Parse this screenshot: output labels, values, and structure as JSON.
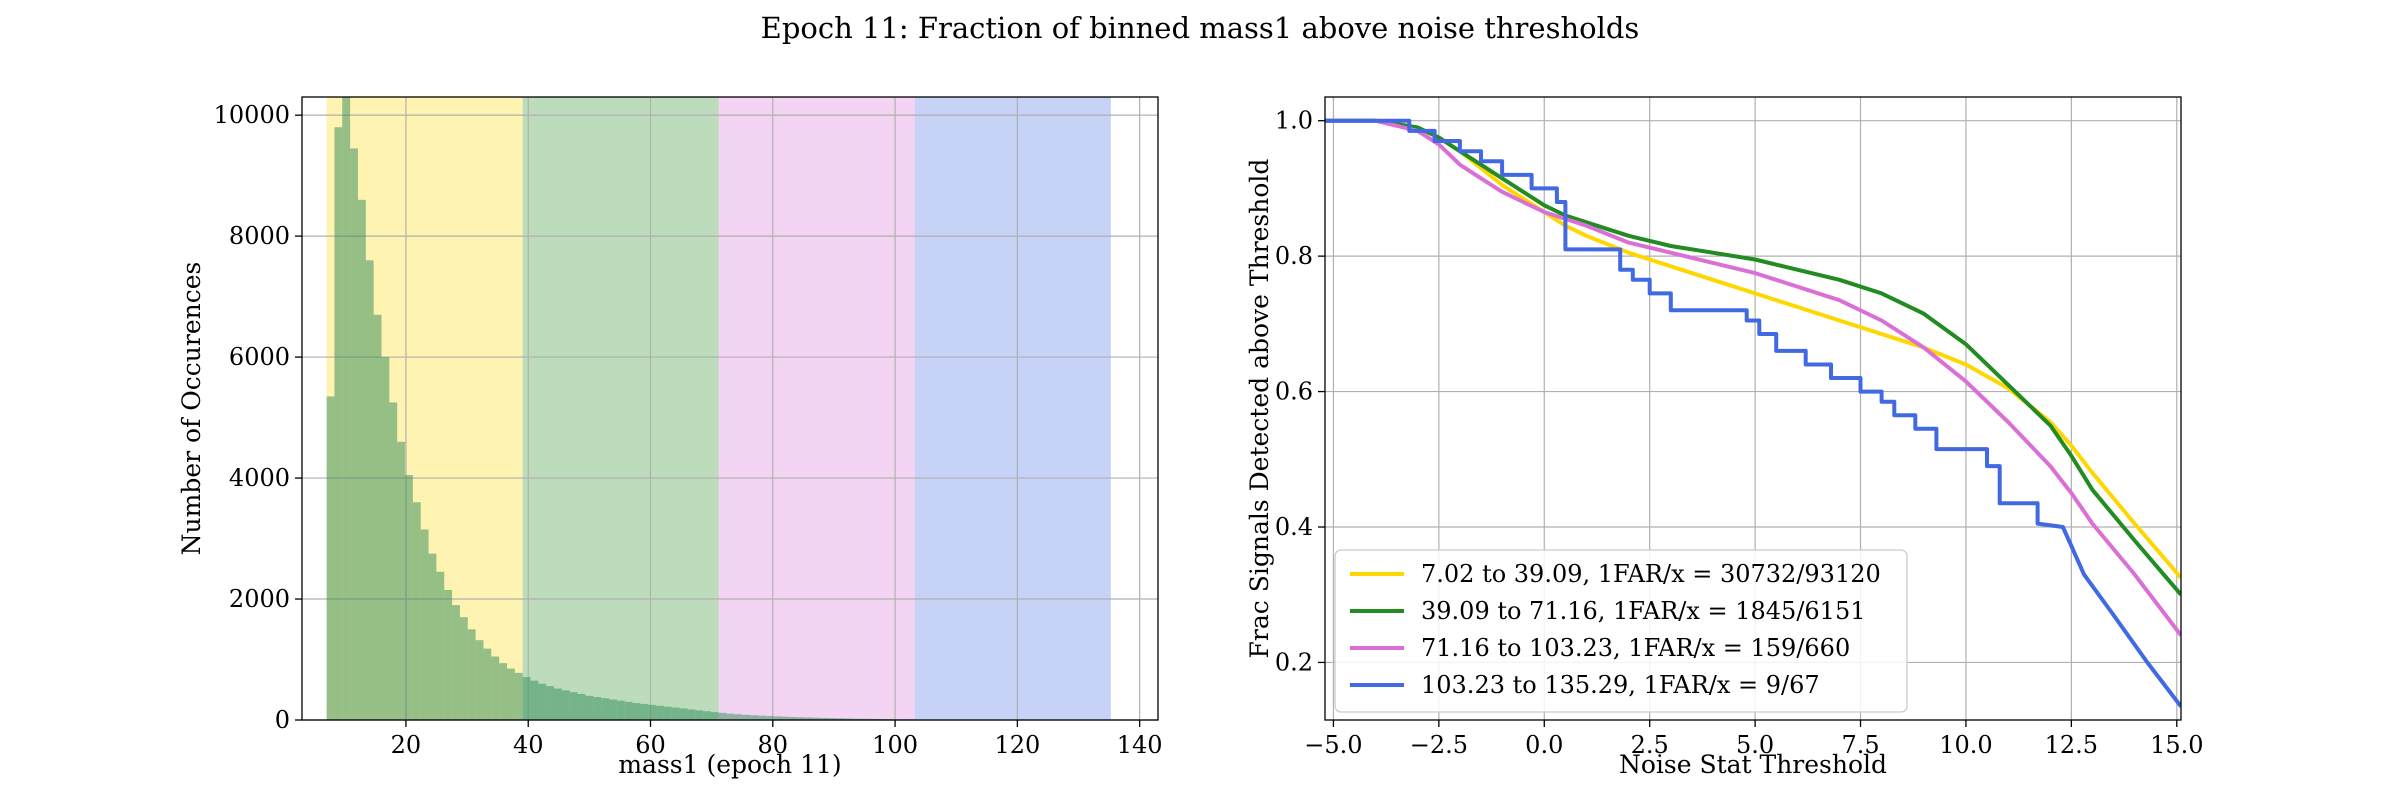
{
  "figure": {
    "title": "Epoch 11: Fraction of binned mass1 above noise thresholds"
  },
  "colors": {
    "bin1": "#ffd700",
    "bin2": "#228b22",
    "bin3": "#da70d6",
    "bin4": "#4169e1",
    "hist": "#2e8b57",
    "grid": "#b0b0b0"
  },
  "chart_data": [
    {
      "type": "bar",
      "subtype": "histogram",
      "xlabel": "mass1 (epoch 11)",
      "ylabel": "Number of Occurences",
      "xlim": [
        3,
        143
      ],
      "ylim": [
        0,
        10300
      ],
      "xticks": [
        20,
        40,
        60,
        80,
        100,
        120,
        140
      ],
      "yticks": [
        0,
        2000,
        4000,
        6000,
        8000,
        10000
      ],
      "grid": true,
      "shaded_bins": [
        {
          "from": 7.02,
          "to": 39.09,
          "color": "#ffd700"
        },
        {
          "from": 39.09,
          "to": 71.16,
          "color": "#228b22"
        },
        {
          "from": 71.16,
          "to": 103.23,
          "color": "#da70d6"
        },
        {
          "from": 103.23,
          "to": 135.29,
          "color": "#4169e1"
        }
      ],
      "bin_start": 7.02,
      "bin_width": 1.283,
      "counts": [
        5350,
        9800,
        10300,
        9450,
        8600,
        7600,
        6700,
        6000,
        5250,
        4600,
        4050,
        3600,
        3150,
        2750,
        2450,
        2150,
        1900,
        1700,
        1500,
        1320,
        1180,
        1050,
        940,
        850,
        780,
        710,
        650,
        600,
        560,
        520,
        490,
        460,
        430,
        400,
        380,
        360,
        340,
        320,
        300,
        280,
        265,
        250,
        235,
        220,
        205,
        190,
        175,
        160,
        145,
        130,
        118,
        105,
        95,
        85,
        78,
        72,
        66,
        60,
        55,
        50,
        46,
        42,
        38,
        34,
        31,
        28,
        25,
        22,
        20,
        18,
        16,
        14,
        12,
        11,
        10,
        9,
        8,
        7,
        6,
        5,
        4,
        3,
        3,
        2,
        2,
        1,
        1,
        1,
        1,
        0,
        0,
        0,
        0,
        0,
        0,
        0,
        0,
        0,
        0,
        0
      ]
    },
    {
      "type": "line",
      "xlabel": "Noise Stat Threshold",
      "ylabel": "Frac Signals Detected above Threshold",
      "xlim": [
        -5.2,
        15.1
      ],
      "ylim": [
        0.115,
        1.035
      ],
      "xticks": [
        -5.0,
        -2.5,
        0.0,
        2.5,
        5.0,
        7.5,
        10.0,
        12.5,
        15.0
      ],
      "yticks": [
        0.2,
        0.4,
        0.6,
        0.8,
        1.0
      ],
      "xtick_labels": [
        "−5.0",
        "−2.5",
        "0.0",
        "2.5",
        "5.0",
        "7.5",
        "10.0",
        "12.5",
        "15.0"
      ],
      "ytick_labels": [
        "0.2",
        "0.4",
        "0.6",
        "0.8",
        "1.0"
      ],
      "grid": true,
      "legend_position": "lower-left",
      "series": [
        {
          "name": "7.02 to 39.09, 1FAR/x = 30732/93120",
          "color": "#ffd700",
          "x": [
            -5.2,
            -4.0,
            -3.0,
            -2.5,
            -2.0,
            -1.5,
            -1.0,
            -0.5,
            0.0,
            0.5,
            1.0,
            2.0,
            3.0,
            4.0,
            5.0,
            6.0,
            7.0,
            8.0,
            9.0,
            10.0,
            11.0,
            12.0,
            12.5,
            13.0,
            14.0,
            15.1
          ],
          "y": [
            1.0,
            1.0,
            0.99,
            0.975,
            0.955,
            0.93,
            0.905,
            0.885,
            0.865,
            0.845,
            0.83,
            0.805,
            0.785,
            0.765,
            0.745,
            0.725,
            0.705,
            0.685,
            0.665,
            0.64,
            0.605,
            0.555,
            0.52,
            0.48,
            0.405,
            0.325
          ]
        },
        {
          "name": "39.09 to 71.16, 1FAR/x = 1845/6151",
          "color": "#228b22",
          "x": [
            -5.2,
            -4.0,
            -3.0,
            -2.5,
            -2.0,
            -1.5,
            -1.0,
            -0.5,
            0.0,
            0.5,
            1.0,
            2.0,
            3.0,
            4.0,
            5.0,
            6.0,
            7.0,
            8.0,
            9.0,
            10.0,
            11.0,
            12.0,
            12.5,
            13.0,
            14.0,
            15.1
          ],
          "y": [
            1.0,
            1.0,
            0.99,
            0.975,
            0.955,
            0.935,
            0.915,
            0.895,
            0.875,
            0.86,
            0.85,
            0.83,
            0.815,
            0.805,
            0.795,
            0.78,
            0.765,
            0.745,
            0.715,
            0.67,
            0.61,
            0.55,
            0.505,
            0.455,
            0.38,
            0.3
          ]
        },
        {
          "name": "71.16 to 103.23, 1FAR/x = 159/660",
          "color": "#da70d6",
          "x": [
            -5.2,
            -4.0,
            -3.0,
            -2.5,
            -2.0,
            -1.5,
            -1.0,
            -0.5,
            0.0,
            0.5,
            1.0,
            2.0,
            3.0,
            4.0,
            5.0,
            6.0,
            7.0,
            8.0,
            9.0,
            10.0,
            11.0,
            12.0,
            12.5,
            13.0,
            14.0,
            15.1
          ],
          "y": [
            1.0,
            1.0,
            0.985,
            0.965,
            0.935,
            0.915,
            0.895,
            0.88,
            0.865,
            0.855,
            0.845,
            0.82,
            0.805,
            0.79,
            0.775,
            0.755,
            0.735,
            0.705,
            0.665,
            0.615,
            0.555,
            0.49,
            0.45,
            0.405,
            0.33,
            0.24
          ]
        },
        {
          "name": "103.23 to 135.29, 1FAR/x = 9/67",
          "color": "#4169e1",
          "x": [
            -5.2,
            -3.2,
            -3.2,
            -2.6,
            -2.6,
            -2.0,
            -2.0,
            -1.5,
            -1.5,
            -1.0,
            -1.0,
            -0.3,
            -0.3,
            0.3,
            0.3,
            0.5,
            0.5,
            1.8,
            1.8,
            2.1,
            2.1,
            2.5,
            2.5,
            3.0,
            3.0,
            4.8,
            4.8,
            5.1,
            5.1,
            5.5,
            5.5,
            6.2,
            6.2,
            6.8,
            6.8,
            7.5,
            7.5,
            8.0,
            8.0,
            8.3,
            8.3,
            8.8,
            8.8,
            9.3,
            9.3,
            10.5,
            10.5,
            10.8,
            10.8,
            11.7,
            11.7,
            12.3,
            12.8,
            13.5,
            14.3,
            15.1
          ],
          "y": [
            1.0,
            1.0,
            0.985,
            0.985,
            0.97,
            0.97,
            0.955,
            0.955,
            0.94,
            0.94,
            0.92,
            0.92,
            0.9,
            0.9,
            0.88,
            0.88,
            0.81,
            0.81,
            0.78,
            0.78,
            0.765,
            0.765,
            0.745,
            0.745,
            0.72,
            0.72,
            0.705,
            0.705,
            0.685,
            0.685,
            0.66,
            0.66,
            0.64,
            0.64,
            0.62,
            0.62,
            0.6,
            0.6,
            0.585,
            0.585,
            0.565,
            0.565,
            0.545,
            0.545,
            0.515,
            0.515,
            0.49,
            0.49,
            0.435,
            0.435,
            0.405,
            0.4,
            0.33,
            0.27,
            0.2,
            0.135
          ]
        }
      ]
    }
  ]
}
